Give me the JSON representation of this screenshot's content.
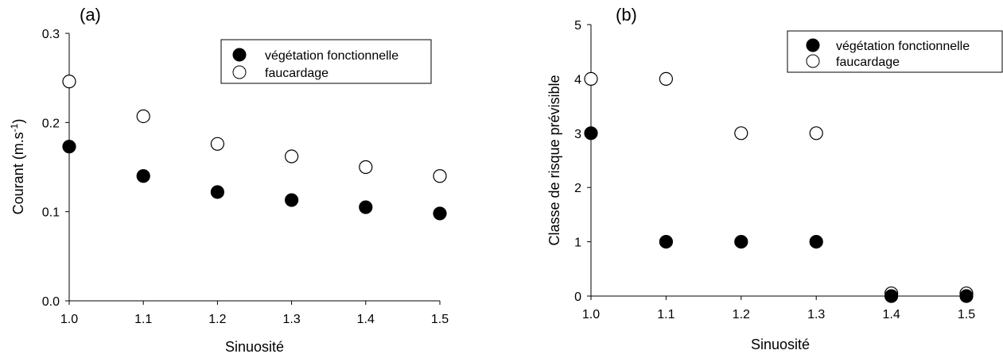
{
  "chart_data": [
    {
      "type": "scatter",
      "panel_label": "(a)",
      "xlabel": "Sinuosité",
      "ylabel_main": "Courant (m.s",
      "ylabel_sup": "-1",
      "ylabel_end": ")",
      "xlim": [
        1.0,
        1.5
      ],
      "ylim": [
        0.0,
        0.3
      ],
      "xticks": [
        "1.0",
        "1.1",
        "1.2",
        "1.3",
        "1.4",
        "1.5"
      ],
      "yticks": [
        "0.0",
        "0.1",
        "0.2",
        "0.3"
      ],
      "x": [
        1.0,
        1.1,
        1.2,
        1.3,
        1.4,
        1.5
      ],
      "series": [
        {
          "name": "végétation fonctionnelle",
          "marker": "filled",
          "color": "#000000",
          "values": [
            0.173,
            0.14,
            0.122,
            0.113,
            0.105,
            0.098
          ]
        },
        {
          "name": "faucardage",
          "marker": "open",
          "color": "#000000",
          "values": [
            0.246,
            0.207,
            0.176,
            0.162,
            0.15,
            0.14
          ]
        }
      ],
      "grid": false,
      "legend_position": "top-right"
    },
    {
      "type": "scatter",
      "panel_label": "(b)",
      "xlabel": "Sinuosité",
      "ylabel": "Classe de risque prévisible",
      "xlim": [
        1.0,
        1.5
      ],
      "ylim": [
        0,
        5
      ],
      "xticks": [
        "1.0",
        "1.1",
        "1.2",
        "1.3",
        "1.4",
        "1.5"
      ],
      "yticks": [
        "0",
        "1",
        "2",
        "3",
        "4",
        "5"
      ],
      "x": [
        1.0,
        1.1,
        1.2,
        1.3,
        1.4,
        1.5
      ],
      "series": [
        {
          "name": "végétation fonctionnelle",
          "marker": "filled",
          "color": "#000000",
          "values": [
            3,
            1,
            1,
            1,
            0,
            0
          ]
        },
        {
          "name": "faucardage",
          "marker": "open",
          "color": "#000000",
          "values": [
            4,
            4,
            3,
            3,
            0.05,
            0.05
          ]
        }
      ],
      "grid": false,
      "legend_position": "top-right"
    }
  ]
}
